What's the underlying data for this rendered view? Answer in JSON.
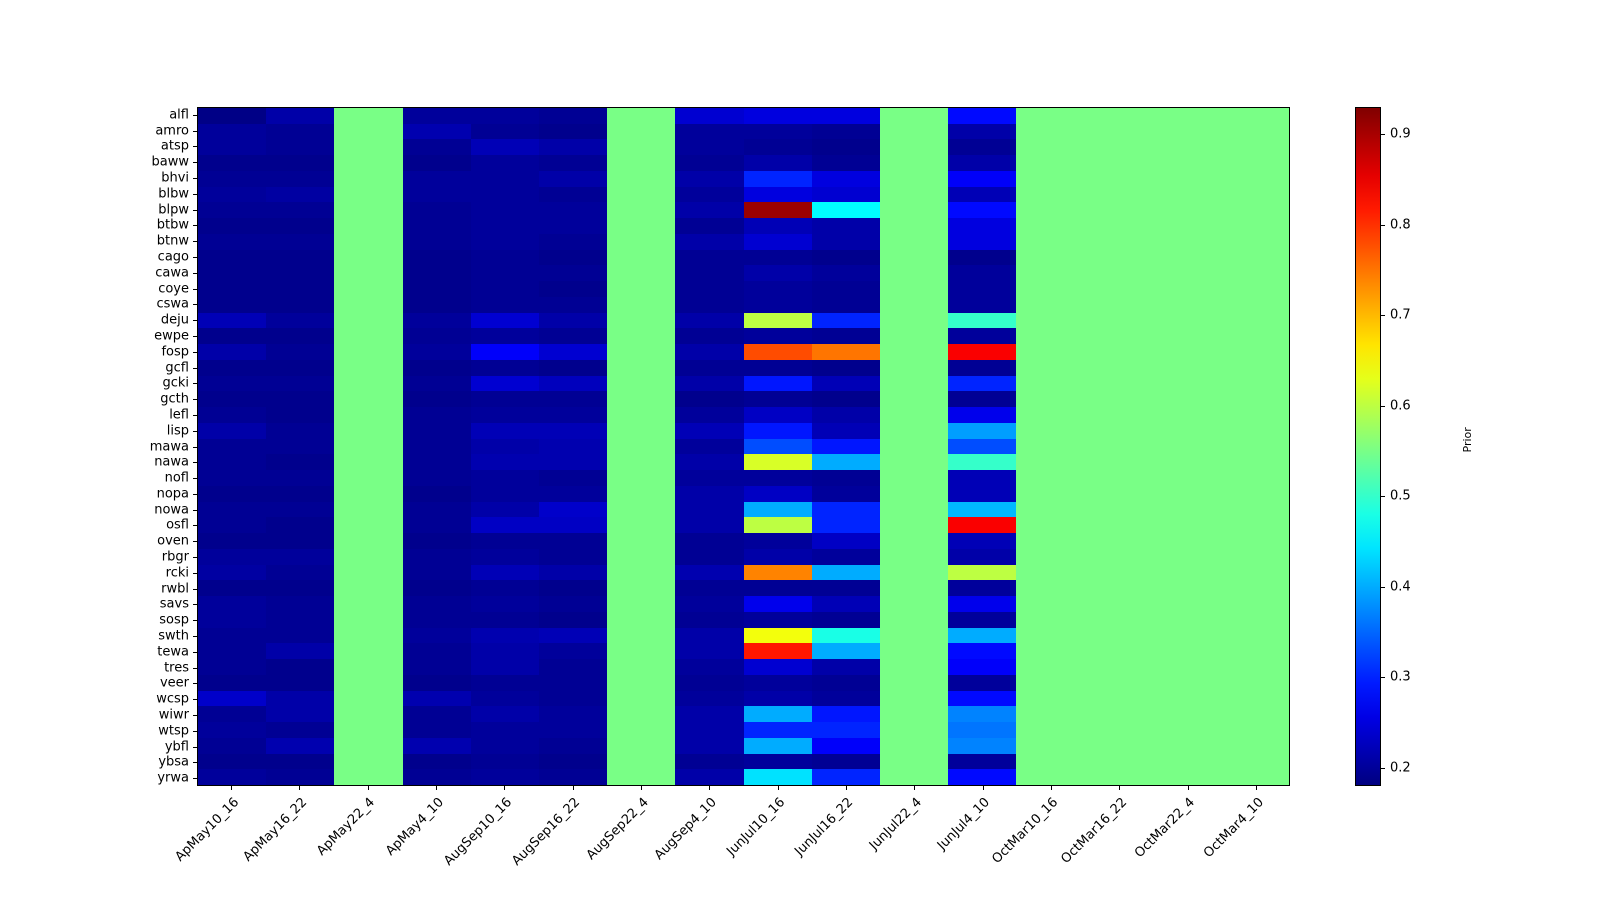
{
  "colorbar": {
    "label": "Prior",
    "ticks": [
      0.2,
      0.3,
      0.4,
      0.5,
      0.6,
      0.7,
      0.8,
      0.9
    ],
    "vmin": 0.18,
    "vmax": 0.93
  },
  "chart_data": {
    "type": "heatmap",
    "colormap": "jet",
    "title": "",
    "xlabel": "",
    "ylabel": "",
    "colorbar_label": "Prior",
    "colorbar_ticks": [
      0.2,
      0.3,
      0.4,
      0.5,
      0.6,
      0.7,
      0.8,
      0.9
    ],
    "vmin": 0.18,
    "vmax": 0.93,
    "columns": [
      "ApMay10_16",
      "ApMay16_22",
      "ApMay22_4",
      "ApMay4_10",
      "AugSep10_16",
      "AugSep16_22",
      "AugSep22_4",
      "AugSep4_10",
      "JunJul10_16",
      "JunJul16_22",
      "JunJul22_4",
      "JunJul4_10",
      "OctMar10_16",
      "OctMar16_22",
      "OctMar22_4",
      "OctMar4_10"
    ],
    "rows": [
      "alfl",
      "amro",
      "atsp",
      "baww",
      "bhvi",
      "blbw",
      "blpw",
      "btbw",
      "btnw",
      "cago",
      "cawa",
      "coye",
      "cswa",
      "deju",
      "ewpe",
      "fosp",
      "gcfl",
      "gcki",
      "gcth",
      "lefl",
      "lisp",
      "mawa",
      "nawa",
      "nofl",
      "nopa",
      "nowa",
      "osfl",
      "oven",
      "rbgr",
      "rcki",
      "rwbl",
      "savs",
      "sosp",
      "swth",
      "tewa",
      "tres",
      "veer",
      "wcsp",
      "wiwr",
      "wtsp",
      "ybfl",
      "ybsa",
      "yrwa"
    ],
    "values": [
      [
        0.185,
        0.21,
        0.55,
        0.2,
        0.2,
        0.195,
        0.55,
        0.24,
        0.25,
        0.25,
        0.55,
        0.28,
        0.55,
        0.55,
        0.55,
        0.55
      ],
      [
        0.2,
        0.195,
        0.55,
        0.215,
        0.195,
        0.19,
        0.55,
        0.2,
        0.2,
        0.195,
        0.55,
        0.21,
        0.55,
        0.55,
        0.55,
        0.55
      ],
      [
        0.2,
        0.195,
        0.55,
        0.195,
        0.22,
        0.21,
        0.55,
        0.2,
        0.195,
        0.19,
        0.55,
        0.195,
        0.55,
        0.55,
        0.55,
        0.55
      ],
      [
        0.19,
        0.19,
        0.55,
        0.19,
        0.2,
        0.195,
        0.55,
        0.195,
        0.21,
        0.195,
        0.55,
        0.21,
        0.55,
        0.55,
        0.55,
        0.55
      ],
      [
        0.195,
        0.195,
        0.55,
        0.2,
        0.2,
        0.21,
        0.55,
        0.21,
        0.3,
        0.25,
        0.55,
        0.27,
        0.55,
        0.55,
        0.55,
        0.55
      ],
      [
        0.2,
        0.205,
        0.55,
        0.2,
        0.2,
        0.195,
        0.55,
        0.2,
        0.25,
        0.24,
        0.55,
        0.22,
        0.55,
        0.55,
        0.55,
        0.55
      ],
      [
        0.195,
        0.195,
        0.55,
        0.195,
        0.2,
        0.2,
        0.55,
        0.21,
        0.91,
        0.46,
        0.55,
        0.28,
        0.55,
        0.55,
        0.55,
        0.55
      ],
      [
        0.19,
        0.19,
        0.55,
        0.195,
        0.2,
        0.2,
        0.55,
        0.195,
        0.22,
        0.21,
        0.55,
        0.25,
        0.55,
        0.55,
        0.55,
        0.55
      ],
      [
        0.195,
        0.195,
        0.55,
        0.195,
        0.2,
        0.195,
        0.55,
        0.21,
        0.24,
        0.21,
        0.55,
        0.25,
        0.55,
        0.55,
        0.55,
        0.55
      ],
      [
        0.19,
        0.19,
        0.55,
        0.19,
        0.195,
        0.19,
        0.55,
        0.195,
        0.195,
        0.19,
        0.55,
        0.19,
        0.55,
        0.55,
        0.55,
        0.55
      ],
      [
        0.19,
        0.19,
        0.55,
        0.19,
        0.195,
        0.195,
        0.55,
        0.195,
        0.21,
        0.2,
        0.55,
        0.2,
        0.55,
        0.55,
        0.55,
        0.55
      ],
      [
        0.19,
        0.19,
        0.55,
        0.19,
        0.195,
        0.19,
        0.55,
        0.195,
        0.2,
        0.195,
        0.55,
        0.2,
        0.55,
        0.55,
        0.55,
        0.55
      ],
      [
        0.19,
        0.19,
        0.55,
        0.19,
        0.195,
        0.195,
        0.55,
        0.195,
        0.2,
        0.195,
        0.55,
        0.2,
        0.55,
        0.55,
        0.55,
        0.55
      ],
      [
        0.22,
        0.2,
        0.55,
        0.2,
        0.24,
        0.21,
        0.55,
        0.21,
        0.6,
        0.3,
        0.55,
        0.5,
        0.55,
        0.55,
        0.55,
        0.55
      ],
      [
        0.19,
        0.19,
        0.55,
        0.195,
        0.2,
        0.195,
        0.55,
        0.195,
        0.2,
        0.195,
        0.55,
        0.2,
        0.55,
        0.55,
        0.55,
        0.55
      ],
      [
        0.21,
        0.195,
        0.55,
        0.2,
        0.27,
        0.24,
        0.55,
        0.21,
        0.78,
        0.75,
        0.55,
        0.84,
        0.55,
        0.55,
        0.55,
        0.55
      ],
      [
        0.19,
        0.19,
        0.55,
        0.19,
        0.195,
        0.19,
        0.55,
        0.195,
        0.195,
        0.19,
        0.55,
        0.195,
        0.55,
        0.55,
        0.55,
        0.55
      ],
      [
        0.195,
        0.195,
        0.55,
        0.195,
        0.24,
        0.225,
        0.55,
        0.21,
        0.29,
        0.22,
        0.55,
        0.3,
        0.55,
        0.55,
        0.55,
        0.55
      ],
      [
        0.19,
        0.19,
        0.55,
        0.19,
        0.195,
        0.195,
        0.55,
        0.19,
        0.195,
        0.19,
        0.55,
        0.195,
        0.55,
        0.55,
        0.55,
        0.55
      ],
      [
        0.195,
        0.19,
        0.55,
        0.195,
        0.2,
        0.2,
        0.55,
        0.2,
        0.23,
        0.21,
        0.55,
        0.26,
        0.55,
        0.55,
        0.55,
        0.55
      ],
      [
        0.21,
        0.195,
        0.55,
        0.195,
        0.22,
        0.22,
        0.55,
        0.22,
        0.29,
        0.22,
        0.55,
        0.39,
        0.55,
        0.55,
        0.55,
        0.55
      ],
      [
        0.195,
        0.195,
        0.55,
        0.195,
        0.21,
        0.215,
        0.55,
        0.2,
        0.33,
        0.29,
        0.55,
        0.33,
        0.55,
        0.55,
        0.55,
        0.55
      ],
      [
        0.195,
        0.19,
        0.55,
        0.195,
        0.215,
        0.215,
        0.55,
        0.21,
        0.62,
        0.4,
        0.55,
        0.5,
        0.55,
        0.55,
        0.55,
        0.55
      ],
      [
        0.195,
        0.195,
        0.55,
        0.195,
        0.2,
        0.195,
        0.55,
        0.2,
        0.2,
        0.195,
        0.55,
        0.22,
        0.55,
        0.55,
        0.55,
        0.55
      ],
      [
        0.19,
        0.19,
        0.55,
        0.19,
        0.2,
        0.2,
        0.55,
        0.21,
        0.23,
        0.2,
        0.55,
        0.22,
        0.55,
        0.55,
        0.55,
        0.55
      ],
      [
        0.195,
        0.195,
        0.55,
        0.195,
        0.21,
        0.235,
        0.55,
        0.21,
        0.4,
        0.3,
        0.55,
        0.41,
        0.55,
        0.55,
        0.55,
        0.55
      ],
      [
        0.195,
        0.19,
        0.55,
        0.195,
        0.23,
        0.23,
        0.55,
        0.21,
        0.6,
        0.3,
        0.55,
        0.84,
        0.55,
        0.55,
        0.55,
        0.55
      ],
      [
        0.19,
        0.19,
        0.55,
        0.19,
        0.195,
        0.195,
        0.55,
        0.195,
        0.2,
        0.23,
        0.55,
        0.22,
        0.55,
        0.55,
        0.55,
        0.55
      ],
      [
        0.2,
        0.2,
        0.55,
        0.195,
        0.2,
        0.195,
        0.55,
        0.195,
        0.21,
        0.2,
        0.55,
        0.21,
        0.55,
        0.55,
        0.55,
        0.55
      ],
      [
        0.205,
        0.195,
        0.55,
        0.195,
        0.22,
        0.21,
        0.55,
        0.215,
        0.74,
        0.4,
        0.55,
        0.6,
        0.55,
        0.55,
        0.55,
        0.55
      ],
      [
        0.19,
        0.19,
        0.55,
        0.19,
        0.195,
        0.19,
        0.55,
        0.195,
        0.195,
        0.195,
        0.55,
        0.2,
        0.55,
        0.55,
        0.55,
        0.55
      ],
      [
        0.2,
        0.195,
        0.55,
        0.195,
        0.2,
        0.195,
        0.55,
        0.2,
        0.26,
        0.22,
        0.55,
        0.26,
        0.55,
        0.55,
        0.55,
        0.55
      ],
      [
        0.2,
        0.195,
        0.55,
        0.195,
        0.195,
        0.19,
        0.55,
        0.195,
        0.2,
        0.195,
        0.55,
        0.2,
        0.55,
        0.55,
        0.55,
        0.55
      ],
      [
        0.195,
        0.195,
        0.55,
        0.2,
        0.215,
        0.22,
        0.55,
        0.21,
        0.64,
        0.48,
        0.55,
        0.4,
        0.55,
        0.55,
        0.55,
        0.55
      ],
      [
        0.195,
        0.21,
        0.55,
        0.195,
        0.21,
        0.2,
        0.55,
        0.21,
        0.82,
        0.4,
        0.55,
        0.28,
        0.55,
        0.55,
        0.55,
        0.55
      ],
      [
        0.195,
        0.19,
        0.55,
        0.195,
        0.21,
        0.195,
        0.55,
        0.2,
        0.24,
        0.21,
        0.55,
        0.27,
        0.55,
        0.55,
        0.55,
        0.55
      ],
      [
        0.19,
        0.19,
        0.55,
        0.19,
        0.195,
        0.195,
        0.55,
        0.195,
        0.2,
        0.195,
        0.55,
        0.2,
        0.55,
        0.55,
        0.55,
        0.55
      ],
      [
        0.235,
        0.21,
        0.55,
        0.215,
        0.2,
        0.195,
        0.55,
        0.2,
        0.21,
        0.2,
        0.55,
        0.28,
        0.55,
        0.55,
        0.55,
        0.55
      ],
      [
        0.195,
        0.21,
        0.55,
        0.195,
        0.21,
        0.2,
        0.55,
        0.21,
        0.4,
        0.29,
        0.55,
        0.37,
        0.55,
        0.55,
        0.55,
        0.55
      ],
      [
        0.2,
        0.195,
        0.55,
        0.195,
        0.2,
        0.2,
        0.55,
        0.21,
        0.3,
        0.3,
        0.55,
        0.36,
        0.55,
        0.55,
        0.55,
        0.55
      ],
      [
        0.195,
        0.215,
        0.55,
        0.215,
        0.2,
        0.195,
        0.55,
        0.21,
        0.4,
        0.27,
        0.55,
        0.37,
        0.55,
        0.55,
        0.55,
        0.55
      ],
      [
        0.19,
        0.19,
        0.55,
        0.19,
        0.195,
        0.19,
        0.55,
        0.195,
        0.2,
        0.195,
        0.55,
        0.2,
        0.55,
        0.55,
        0.55,
        0.55
      ],
      [
        0.2,
        0.195,
        0.55,
        0.195,
        0.2,
        0.195,
        0.55,
        0.21,
        0.44,
        0.3,
        0.55,
        0.28,
        0.55,
        0.55,
        0.55,
        0.55
      ]
    ]
  }
}
